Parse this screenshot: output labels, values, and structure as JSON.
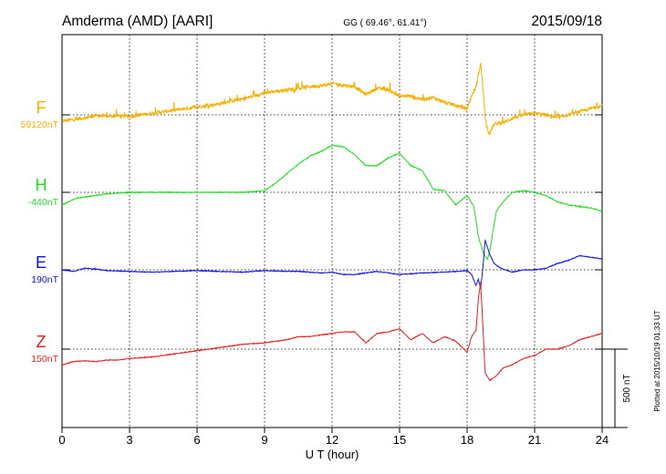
{
  "chart_data": {
    "type": "line",
    "title_left": "Amderma (AMD)  [AARI]",
    "title_center": "GG ( 69.46°,  61.41°)",
    "title_right": "2015/09/18",
    "xlabel": "U T (hour)",
    "xlim": [
      0,
      24
    ],
    "x_ticks": [
      0,
      3,
      6,
      9,
      12,
      15,
      18,
      21,
      24
    ],
    "x_tick_labels": [
      "0",
      "3",
      "6",
      "9",
      "12",
      "15",
      "18",
      "21",
      "24"
    ],
    "grid": true,
    "scale_bar_label": "500 nT",
    "scale_bar_nT": 500,
    "footer_note": "Plotted at 2015/10/19 01:33 UT",
    "series": [
      {
        "name": "F",
        "baseline_label": "59120nT",
        "color": "#f5b000",
        "x": [
          0,
          0.5,
          1,
          1.5,
          2,
          2.5,
          3,
          3.5,
          4,
          4.5,
          5,
          5.5,
          6,
          6.5,
          7,
          7.5,
          8,
          8.5,
          9,
          9.5,
          10,
          10.5,
          11,
          11.5,
          12,
          12.5,
          13,
          13.5,
          14,
          14.5,
          15,
          15.5,
          16,
          16.5,
          17,
          17.5,
          18,
          18.2,
          18.4,
          18.5,
          18.6,
          18.7,
          18.8,
          18.9,
          19,
          19.2,
          19.5,
          19.8,
          20,
          20.5,
          21,
          21.5,
          22,
          22.5,
          23,
          23.5,
          24
        ],
        "y": [
          -40,
          -30,
          -20,
          -5,
          -10,
          -5,
          -10,
          0,
          10,
          20,
          30,
          40,
          50,
          60,
          70,
          90,
          100,
          120,
          140,
          150,
          160,
          170,
          180,
          185,
          200,
          190,
          180,
          130,
          170,
          160,
          120,
          120,
          100,
          110,
          80,
          60,
          40,
          120,
          180,
          260,
          330,
          180,
          -20,
          -90,
          -120,
          -60,
          -50,
          -40,
          -20,
          0,
          10,
          0,
          -20,
          0,
          20,
          40,
          60
        ]
      },
      {
        "name": "H",
        "baseline_label": "-440nT",
        "color": "#22dd22",
        "x": [
          0,
          0.3,
          0.6,
          1,
          1.5,
          2,
          2.5,
          3,
          4,
          5,
          6,
          7,
          8,
          9,
          9.5,
          10,
          10.5,
          11,
          11.5,
          12,
          12.5,
          13,
          13.5,
          14,
          14.5,
          15,
          15.5,
          16,
          16.5,
          17,
          17.5,
          18,
          18.3,
          18.5,
          18.7,
          18.9,
          19,
          19.3,
          19.6,
          20,
          20.5,
          21,
          21.5,
          22,
          22.5,
          23,
          23.5,
          24
        ],
        "y": [
          -80,
          -60,
          -40,
          -30,
          -20,
          -10,
          -5,
          0,
          0,
          0,
          0,
          0,
          0,
          10,
          60,
          120,
          180,
          230,
          260,
          300,
          290,
          240,
          170,
          170,
          220,
          250,
          170,
          140,
          20,
          10,
          -80,
          -20,
          -90,
          -280,
          -380,
          -430,
          -380,
          -120,
          -60,
          0,
          10,
          0,
          -20,
          -60,
          -80,
          -90,
          -100,
          -120
        ]
      },
      {
        "name": "E",
        "baseline_label": "190nT",
        "color": "#1010dd",
        "x": [
          0,
          0.5,
          1,
          1.5,
          2,
          3,
          4,
          5,
          6,
          7,
          8,
          9,
          10,
          10.5,
          11,
          11.5,
          12,
          12.5,
          13,
          13.5,
          14,
          14.5,
          15,
          16,
          17,
          17.5,
          18,
          18.2,
          18.4,
          18.5,
          18.6,
          18.7,
          18.8,
          19,
          19.2,
          19.5,
          20,
          20.5,
          21,
          21.5,
          22,
          22.5,
          23,
          23.5,
          24
        ],
        "y": [
          0,
          -10,
          10,
          5,
          -5,
          -10,
          -15,
          -10,
          -5,
          -10,
          -15,
          -5,
          -10,
          -10,
          -15,
          -20,
          -15,
          -30,
          -30,
          -20,
          -10,
          -20,
          -30,
          -20,
          -15,
          -10,
          -5,
          -30,
          -100,
          -60,
          -120,
          10,
          190,
          100,
          40,
          10,
          -15,
          0,
          0,
          10,
          40,
          60,
          90,
          80,
          70
        ]
      },
      {
        "name": "Z",
        "baseline_label": "150nT",
        "color": "#e02020",
        "x": [
          0,
          0.5,
          1,
          1.5,
          2,
          2.5,
          3,
          4,
          5,
          6,
          7,
          8,
          9,
          10,
          10.5,
          11,
          11.5,
          12,
          12.5,
          13,
          13.5,
          14,
          14.5,
          15,
          15.5,
          16,
          16.5,
          17,
          17.5,
          18,
          18.2,
          18.4,
          18.5,
          18.6,
          18.7,
          18.8,
          19,
          19.3,
          19.6,
          20,
          20.5,
          21,
          21.5,
          22,
          22.5,
          23,
          23.5,
          24
        ],
        "y": [
          -100,
          -80,
          -75,
          -80,
          -70,
          -70,
          -60,
          -50,
          -30,
          -10,
          10,
          30,
          40,
          60,
          80,
          80,
          90,
          100,
          110,
          110,
          40,
          100,
          110,
          130,
          60,
          100,
          40,
          80,
          50,
          -20,
          80,
          120,
          320,
          430,
          150,
          -150,
          -200,
          -170,
          -120,
          -100,
          -60,
          -40,
          0,
          0,
          20,
          60,
          80,
          100
        ]
      }
    ]
  }
}
